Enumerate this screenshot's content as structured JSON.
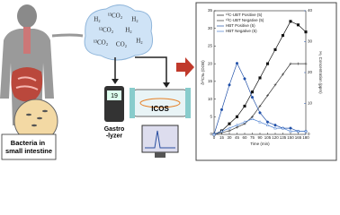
{
  "gases": [
    "H₂",
    "¹³CO₂",
    "H₂",
    "¹²CO₂",
    "H₂",
    "¹³CO₂",
    "CO₂",
    "H₂"
  ],
  "device_reading": "19",
  "gastrolyzer_label": "Gastro\n-lyzer",
  "icos_label": "ICOS",
  "bacteria_label": "Bacteria in small intestine",
  "chart_data": {
    "type": "line",
    "x_label": "Time (min)",
    "y_label": "δ¹³C‰ (DOB)",
    "y2_label": "H₂ Concentration (ppm)",
    "x": [
      0,
      15,
      30,
      45,
      60,
      75,
      90,
      105,
      120,
      135,
      150,
      165,
      180
    ],
    "xlim": [
      0,
      180
    ],
    "xticks": [
      0,
      15,
      30,
      45,
      60,
      75,
      90,
      105,
      120,
      135,
      150,
      165,
      180
    ],
    "ylim": [
      0,
      35
    ],
    "yticks": [
      0,
      5,
      10,
      15,
      20,
      25,
      30,
      35
    ],
    "y2lim": [
      0,
      40
    ],
    "y2ticks": [
      0,
      10,
      20,
      30,
      40
    ],
    "series": [
      {
        "name": "¹³C-UBT Positive (5)",
        "color": "#111111",
        "values": [
          0,
          1,
          3,
          5,
          8,
          12,
          16,
          20,
          24,
          28,
          32,
          31,
          29
        ]
      },
      {
        "name": "¹³C-UBT Negative (5)",
        "color": "#333333",
        "values": [
          0,
          0.5,
          1,
          2,
          3,
          5,
          8,
          11,
          14,
          17,
          20,
          20,
          20
        ]
      },
      {
        "name": "HBT Positive (5)",
        "color": "#1f4fa8",
        "axis": "y2",
        "values": [
          0,
          8,
          16,
          23,
          18,
          12,
          7,
          4,
          3,
          2,
          2,
          1,
          1
        ]
      },
      {
        "name": "HBT Negative (5)",
        "color": "#4a7fd0",
        "axis": "y2",
        "values": [
          0,
          1,
          2,
          3,
          4,
          5,
          4,
          3,
          2,
          2,
          1,
          1,
          1
        ]
      }
    ]
  }
}
